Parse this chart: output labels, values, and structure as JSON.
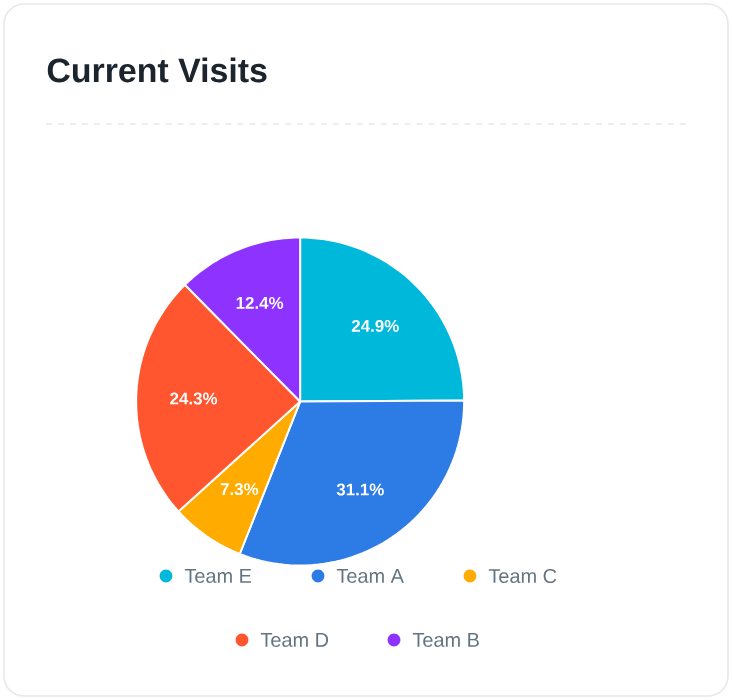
{
  "chart_data": {
    "type": "pie",
    "title": "Current Visits",
    "categories": [
      "Team E",
      "Team A",
      "Team C",
      "Team D",
      "Team B"
    ],
    "values": [
      24.9,
      31.1,
      7.3,
      24.3,
      12.4
    ],
    "value_labels": [
      "24.9%",
      "31.1%",
      "7.3%",
      "24.3%",
      "12.4%"
    ],
    "colors": [
      "#00b8d9",
      "#2d7be5",
      "#ffab00",
      "#ff5630",
      "#8e33ff"
    ],
    "legend": "bottom"
  }
}
